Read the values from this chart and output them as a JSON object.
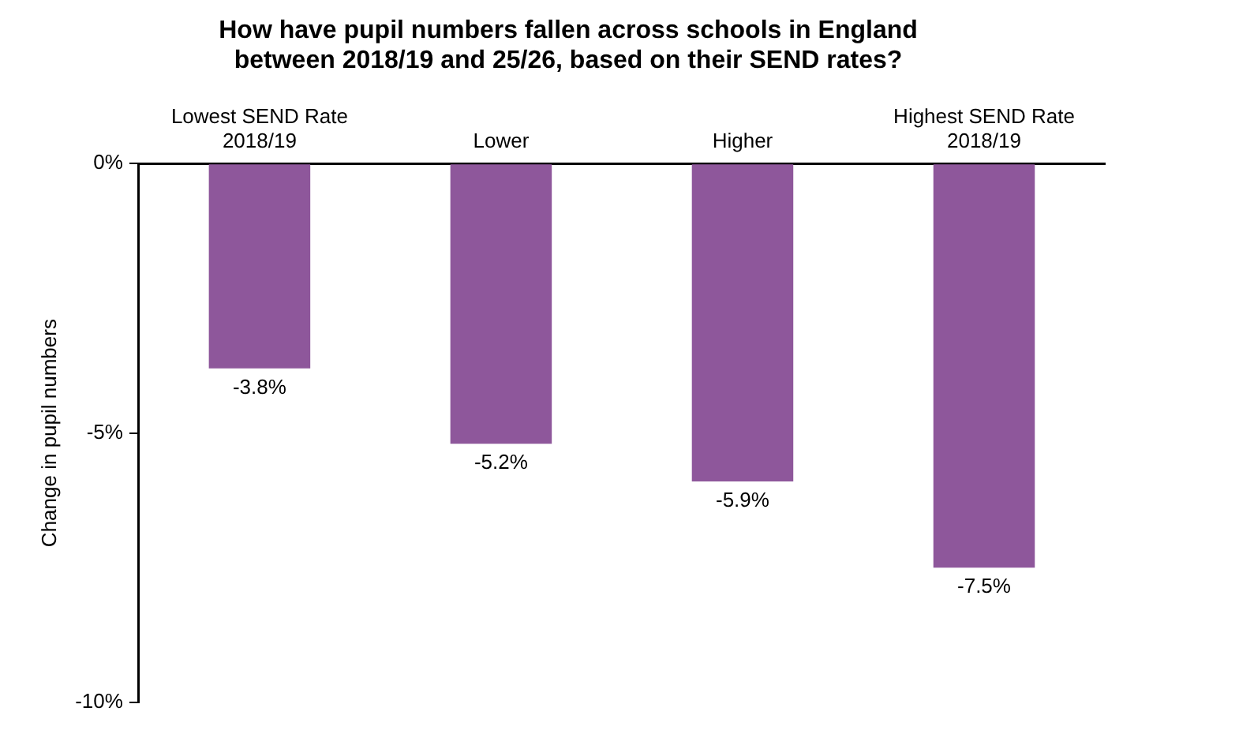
{
  "chart_data": {
    "type": "bar",
    "title": "How have pupil numbers fallen across schools in England\nbetween 2018/19 and 25/26, based on their SEND rates?",
    "ylabel": "Change in pupil numbers",
    "categories": [
      "Lowest SEND Rate\n2018/19",
      "Lower",
      "Higher",
      "Highest SEND Rate\n2018/19"
    ],
    "values": [
      -3.8,
      -5.2,
      -5.9,
      -7.5
    ],
    "color": "#8e579b",
    "value_labels": [
      "-3.8%",
      "-5.2%",
      "-5.9%",
      "-7.5%"
    ],
    "ylim": [
      -10,
      0
    ],
    "yticks": [
      {
        "value": 0,
        "label": "0%"
      },
      {
        "value": -5,
        "label": "-5%"
      },
      {
        "value": -10,
        "label": "-10%"
      }
    ],
    "grid": false,
    "legend": false
  }
}
